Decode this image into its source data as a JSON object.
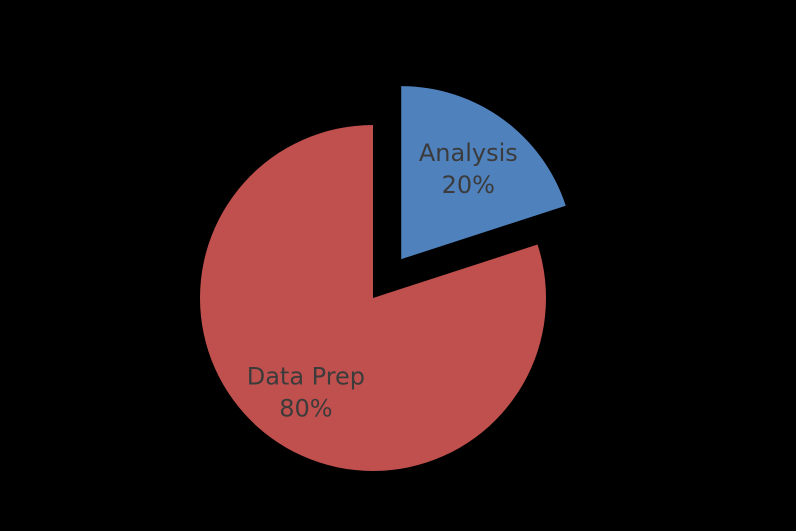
{
  "chart_data": {
    "type": "pie",
    "title": "",
    "slices": [
      {
        "label": "Analysis",
        "percent_label": "20%",
        "value": 20,
        "color": "#4f81bd",
        "exploded": true
      },
      {
        "label": "Data Prep",
        "percent_label": "80%",
        "value": 80,
        "color": "#c0504d",
        "exploded": false
      }
    ],
    "start_angle_deg": 0,
    "direction": "clockwise",
    "background": "#000000"
  }
}
